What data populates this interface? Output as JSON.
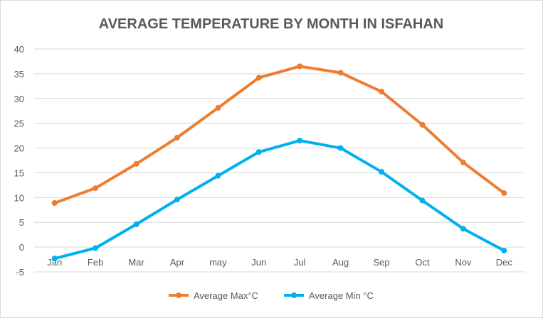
{
  "chart_data": {
    "type": "line",
    "title": "AVERAGE TEMPERATURE BY MONTH IN ISFAHAN",
    "categories": [
      "Jan",
      "Feb",
      "Mar",
      "Apr",
      "may",
      "Jun",
      "Jul",
      "Aug",
      "Sep",
      "Oct",
      "Nov",
      "Dec"
    ],
    "series": [
      {
        "name": "Average Max°C",
        "color": "#ED7D31",
        "values": [
          8.9,
          11.9,
          16.8,
          22.1,
          28.1,
          34.2,
          36.5,
          35.2,
          31.4,
          24.7,
          17.1,
          10.9
        ]
      },
      {
        "name": "Average Min °C",
        "color": "#00B0F0",
        "values": [
          -2.3,
          -0.2,
          4.6,
          9.6,
          14.4,
          19.2,
          21.5,
          20.0,
          15.2,
          9.4,
          3.7,
          -0.7
        ]
      }
    ],
    "ylim": [
      -5,
      40
    ],
    "yticks": [
      40,
      35,
      30,
      25,
      20,
      15,
      10,
      5,
      0,
      -5
    ],
    "grid": true,
    "legend": "bottom"
  }
}
